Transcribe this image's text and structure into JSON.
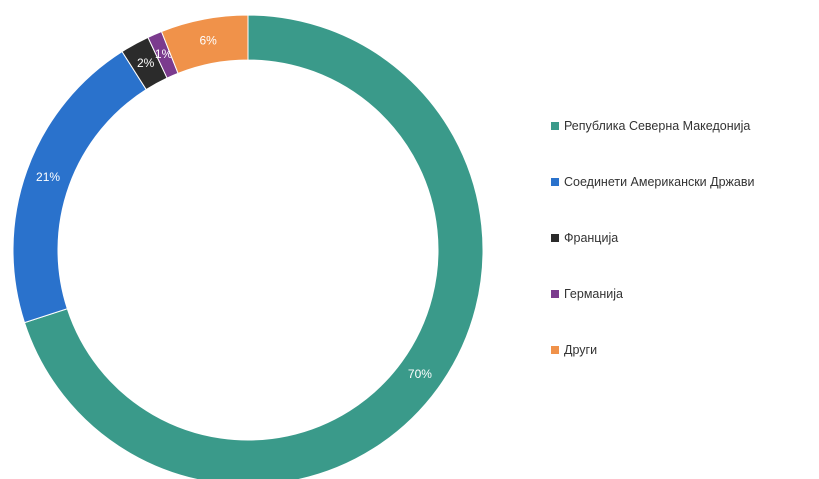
{
  "chart_data": {
    "type": "pie",
    "variant": "donut",
    "title": "",
    "series": [
      {
        "values": [
          {
            "label": "Република Северна Македонија",
            "value": 70,
            "data_label": "70%",
            "color": "#3a9a8a"
          },
          {
            "label": "Соединети Американски Држави",
            "value": 21,
            "data_label": "21%",
            "color": "#2a72cc"
          },
          {
            "label": "Франција",
            "value": 2,
            "data_label": "2%",
            "color": "#2b2b2b"
          },
          {
            "label": "Германија",
            "value": 1,
            "data_label": "1%",
            "color": "#7b3b8e"
          },
          {
            "label": "Други",
            "value": 6,
            "data_label": "6%",
            "color": "#f0924a"
          }
        ]
      }
    ],
    "legend_position": "right",
    "start_angle": "top, clockwise"
  }
}
